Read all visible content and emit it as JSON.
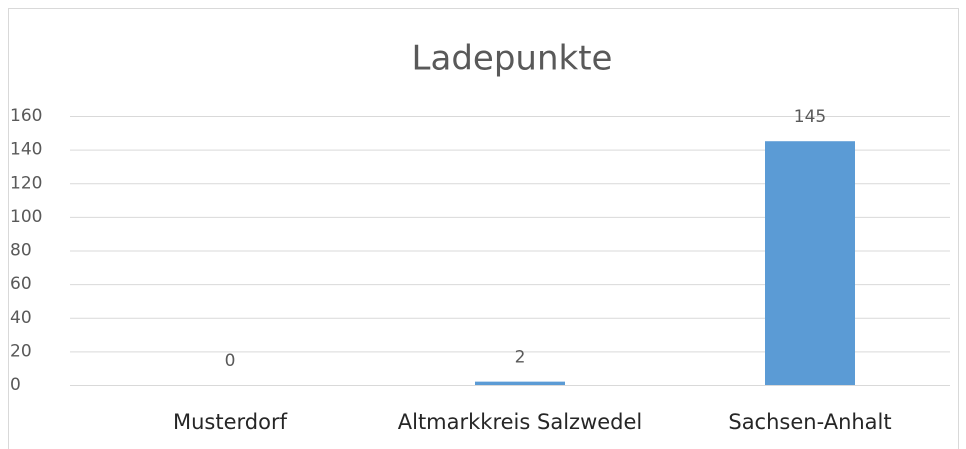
{
  "chart_data": {
    "type": "bar",
    "title": "Ladepunkte",
    "categories": [
      "Musterdorf",
      "Altmarkkreis Salzwedel",
      "Sachsen-Anhalt"
    ],
    "values": [
      0,
      2,
      145
    ],
    "color": "#5b9bd5",
    "ylim": [
      0,
      160
    ],
    "yticks": [
      0,
      20,
      40,
      60,
      80,
      100,
      120,
      140,
      160
    ],
    "grid": true
  }
}
